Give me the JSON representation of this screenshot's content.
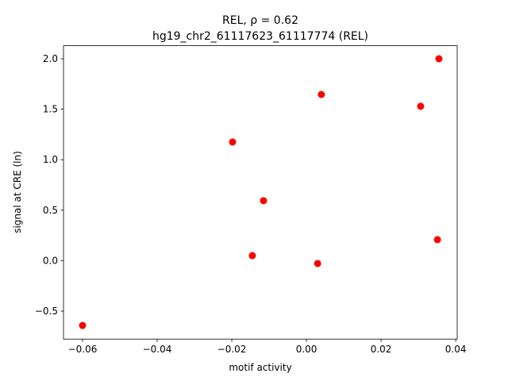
{
  "chart_data": {
    "type": "scatter",
    "title": "REL, ρ = 0.62",
    "subtitle": "hg19_chr2_61117623_61117774 (REL)",
    "x_label": "motif activity",
    "y_label": "signal at CRE (ln)",
    "color": "#ff0000",
    "x": [
      -0.06,
      -0.0198,
      -0.0115,
      -0.0145,
      0.003,
      0.004,
      0.0306,
      0.0355,
      0.0351
    ],
    "values": [
      -0.642,
      1.175,
      0.594,
      0.05,
      -0.028,
      1.646,
      1.529,
      2.0,
      0.208
    ],
    "xlim": [
      -0.0651,
      0.0404
    ],
    "ylim": [
      -0.777,
      2.129
    ],
    "xticks": [
      {
        "value": -0.06,
        "label": "−0.06"
      },
      {
        "value": -0.04,
        "label": "−0.04"
      },
      {
        "value": -0.02,
        "label": "−0.02"
      },
      {
        "value": 0,
        "label": "0.00"
      },
      0.02,
      0.04
    ],
    "yticks": [
      {
        "value": -0.5,
        "label": "−0.5"
      },
      {
        "value": 0,
        "label": "0.0"
      },
      0.5,
      {
        "value": 1,
        "label": "1.0"
      },
      1.5,
      {
        "value": 2,
        "label": "2.0"
      }
    ]
  }
}
